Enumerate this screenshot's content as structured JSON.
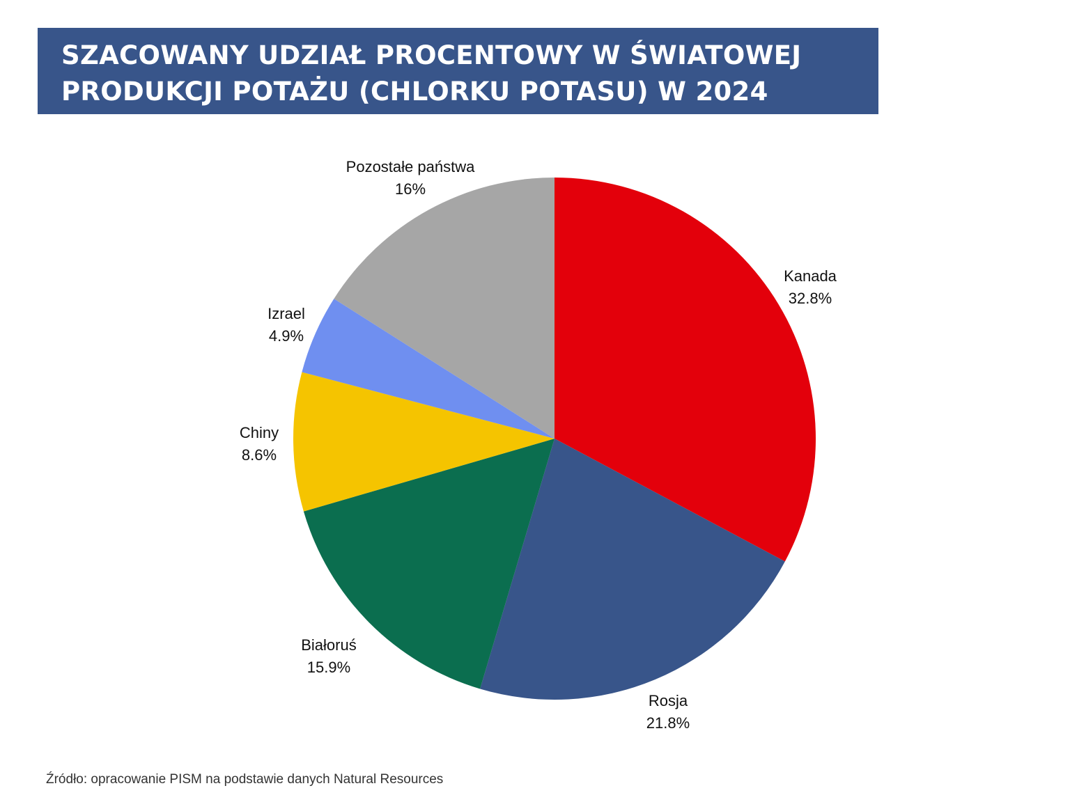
{
  "title": {
    "line1": "SZACOWANY UDZIAŁ PROCENTOWY W ŚWIATOWEJ",
    "line2": "PRODUKCJI POTAŻU (CHLORKU POTASU) W 2024"
  },
  "source": "Źródło: opracowanie PISM na podstawie danych Natural Resources",
  "chart_data": {
    "type": "pie",
    "title": "SZACOWANY UDZIAŁ PROCENTOWY W ŚWIATOWEJ PRODUKCJI POTAŻU (CHLORKU POTASU) W 2024",
    "start": "12 o'clock, clockwise",
    "slices": [
      {
        "label": "Kanada",
        "value": 32.8,
        "value_label": "32.8%",
        "color": "#e3000b"
      },
      {
        "label": "Rosja",
        "value": 21.8,
        "value_label": "21.8%",
        "color": "#38558a"
      },
      {
        "label": "Białoruś",
        "value": 15.9,
        "value_label": "15.9%",
        "color": "#0b6e4f"
      },
      {
        "label": "Chiny",
        "value": 8.6,
        "value_label": "8.6%",
        "color": "#f5c400"
      },
      {
        "label": "Izrael",
        "value": 4.9,
        "value_label": "4.9%",
        "color": "#6f8ff0"
      },
      {
        "label": "Pozostałe państwa",
        "value": 16,
        "value_label": "16%",
        "color": "#a6a6a6"
      }
    ]
  }
}
